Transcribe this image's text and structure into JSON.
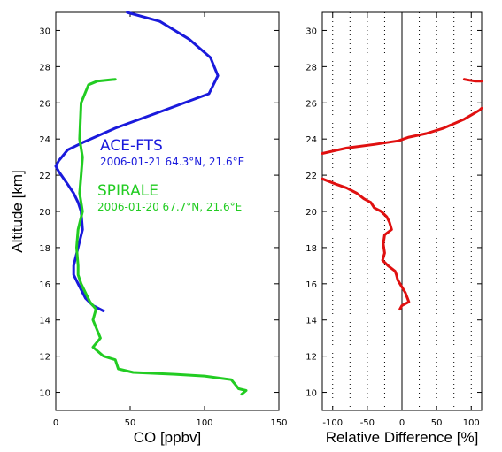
{
  "chart_data": [
    {
      "type": "line",
      "xlabel": "CO [ppbv]",
      "ylabel": "Altitude [km]",
      "xlim": [
        0,
        150
      ],
      "ylim": [
        9,
        31
      ],
      "x_ticks": [
        0,
        50,
        100,
        150
      ],
      "y_ticks": [
        10,
        12,
        14,
        16,
        18,
        20,
        22,
        24,
        26,
        28,
        30
      ],
      "grid": false,
      "series": [
        {
          "name": "ACE-FTS",
          "color": "#1a1adc",
          "points": [
            [
              48,
              31
            ],
            [
              70,
              30.5
            ],
            [
              90,
              29.5
            ],
            [
              104,
              28.5
            ],
            [
              109,
              27.5
            ],
            [
              103,
              26.5
            ],
            [
              70,
              25.5
            ],
            [
              40,
              24.6
            ],
            [
              18,
              23.8
            ],
            [
              8,
              23.4
            ],
            [
              2,
              22.8
            ],
            [
              0,
              22.5
            ],
            [
              2,
              22.2
            ],
            [
              8,
              21.5
            ],
            [
              12,
              21
            ],
            [
              15,
              20.5
            ],
            [
              17,
              20
            ],
            [
              18,
              19
            ],
            [
              15,
              18
            ],
            [
              12,
              17
            ],
            [
              12,
              16.5
            ],
            [
              15,
              16
            ],
            [
              20,
              15.2
            ],
            [
              25,
              14.8
            ],
            [
              32,
              14.5
            ]
          ]
        },
        {
          "name": "SPIRALE",
          "color": "#22cc22",
          "points": [
            [
              40,
              27.3
            ],
            [
              28,
              27.2
            ],
            [
              22,
              27
            ],
            [
              17,
              26
            ],
            [
              16,
              24
            ],
            [
              18,
              23
            ],
            [
              17,
              22
            ],
            [
              16,
              21
            ],
            [
              18,
              20
            ],
            [
              15,
              19
            ],
            [
              14,
              18
            ],
            [
              15,
              17
            ],
            [
              15,
              16.5
            ],
            [
              17,
              16
            ],
            [
              23,
              15
            ],
            [
              27,
              14.6
            ],
            [
              25,
              14
            ],
            [
              30,
              13
            ],
            [
              25,
              12.5
            ],
            [
              32,
              12
            ],
            [
              40,
              11.8
            ],
            [
              42,
              11.3
            ],
            [
              52,
              11.1
            ],
            [
              80,
              11
            ],
            [
              100,
              10.9
            ],
            [
              118,
              10.7
            ],
            [
              120,
              10.5
            ],
            [
              123,
              10.2
            ],
            [
              128,
              10.1
            ],
            [
              125,
              9.9
            ]
          ]
        }
      ],
      "annotations": [
        {
          "series": "ACE-FTS",
          "title": "ACE-FTS",
          "detail": "2006-01-21 64.3°N, 21.6°E"
        },
        {
          "series": "SPIRALE",
          "title": "SPIRALE",
          "detail": "2006-01-20 67.7°N, 21.6°E"
        }
      ]
    },
    {
      "type": "line",
      "xlabel": "Relative Difference [%]",
      "ylabel": "",
      "xlim": [
        -115,
        115
      ],
      "ylim": [
        9,
        31
      ],
      "x_ticks": [
        -100,
        -50,
        0,
        50,
        100
      ],
      "x_tick_labels": [
        "-100",
        "-50",
        "0",
        "50",
        "100"
      ],
      "y_ticks": [
        10,
        12,
        14,
        16,
        18,
        20,
        22,
        24,
        26,
        28,
        30
      ],
      "grid_x_dotted": [
        -100,
        -75,
        -50,
        -25,
        25,
        50,
        75,
        100
      ],
      "zero_line": 0,
      "series": [
        {
          "name": "",
          "color": "#e01010",
          "segments": [
            [
              [
                -115,
                23.2
              ],
              [
                -80,
                23.5
              ],
              [
                -40,
                23.7
              ],
              [
                -5,
                23.9
              ],
              [
                10,
                24.1
              ],
              [
                35,
                24.3
              ],
              [
                60,
                24.6
              ],
              [
                90,
                25.1
              ],
              [
                112,
                25.6
              ],
              [
                115,
                25.7
              ]
            ],
            [
              [
                -115,
                21.8
              ],
              [
                -95,
                21.5
              ],
              [
                -80,
                21.3
              ],
              [
                -65,
                21
              ],
              [
                -55,
                20.7
              ],
              [
                -45,
                20.5
              ],
              [
                -40,
                20.2
              ],
              [
                -30,
                20
              ],
              [
                -22,
                19.7
              ],
              [
                -18,
                19.4
              ],
              [
                -15,
                19
              ],
              [
                -25,
                18.7
              ],
              [
                -27,
                18.2
              ],
              [
                -25,
                17.7
              ],
              [
                -28,
                17.3
              ],
              [
                -20,
                17
              ],
              [
                -10,
                16.7
              ],
              [
                -8,
                16.5
              ],
              [
                -6,
                16.2
              ],
              [
                5,
                15.5
              ],
              [
                10,
                15
              ],
              [
                0,
                14.8
              ],
              [
                -3,
                14.6
              ]
            ],
            [
              [
                90,
                27.3
              ],
              [
                97,
                27.25
              ],
              [
                105,
                27.2
              ],
              [
                115,
                27.2
              ]
            ]
          ]
        }
      ]
    }
  ]
}
